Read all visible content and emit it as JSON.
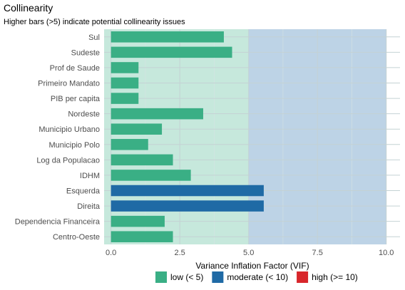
{
  "chart_data": {
    "type": "bar",
    "orientation": "horizontal",
    "title": "Collinearity",
    "subtitle": "Higher bars (>5) indicate potential collinearity issues",
    "xlabel": "Variance Inflation Factor (VIF)",
    "ylabel": "",
    "xlim": [
      -0.25,
      10.5
    ],
    "xticks": [
      0.0,
      2.5,
      5.0,
      7.5,
      10.0
    ],
    "xtick_labels": [
      "0.0",
      "2.5",
      "5.0",
      "7.5",
      "10.0"
    ],
    "categories": [
      "Sul",
      "Sudeste",
      "Prof de Saude",
      "Primeiro Mandato",
      "PIB per capita",
      "Nordeste",
      "Municipio Urbano",
      "Municipio Polo",
      "Log da Populacao",
      "IDHM",
      "Esquerda",
      "Direita",
      "Dependencia Financeira",
      "Centro-Oeste"
    ],
    "values": [
      4.1,
      4.4,
      1.0,
      1.0,
      1.0,
      3.35,
      1.85,
      1.35,
      2.25,
      2.9,
      5.55,
      5.55,
      1.95,
      2.25
    ],
    "groups": [
      "low",
      "low",
      "low",
      "low",
      "low",
      "low",
      "low",
      "low",
      "low",
      "low",
      "moderate",
      "moderate",
      "low",
      "low"
    ],
    "background_bands": [
      {
        "from": -0.25,
        "to": 5,
        "color": "#c6e8dc"
      },
      {
        "from": 5,
        "to": 10,
        "color": "#bdd3e6"
      }
    ],
    "grid": true,
    "legend": {
      "placement": "bottom",
      "entries": [
        {
          "key": "low",
          "label": "low (< 5)",
          "color": "#3aaf85"
        },
        {
          "key": "moderate",
          "label": "moderate (< 10)",
          "color": "#1f6aa5"
        },
        {
          "key": "high",
          "label": "high (>= 10)",
          "color": "#d8262b"
        }
      ]
    }
  }
}
